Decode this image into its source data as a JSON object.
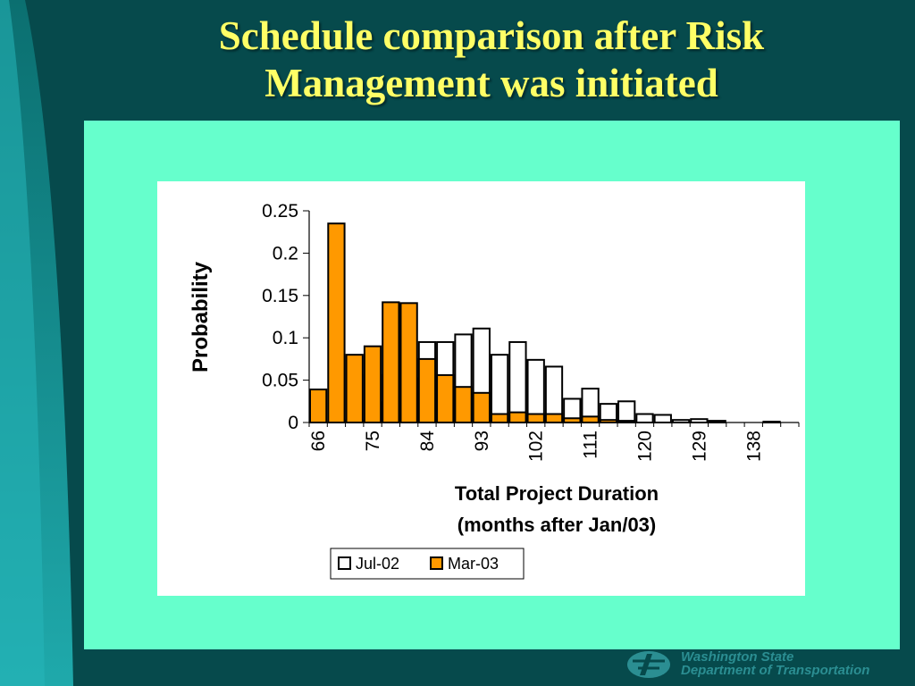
{
  "slide": {
    "title_line1": "Schedule comparison after Risk",
    "title_line2": "Management was initiated",
    "logo_line1": "Washington State",
    "logo_line2": "Department of Transportation"
  },
  "colors": {
    "background": "#064a4c",
    "title": "#ffff66",
    "panel": "#66ffcc",
    "series_jul02": "#ffffff",
    "series_mar03": "#ff9900",
    "logo": "#2b8e92"
  },
  "chart_data": {
    "type": "bar",
    "title": "",
    "xlabel_line1": "Total Project Duration",
    "xlabel_line2": "(months after Jan/03)",
    "ylabel": "Probability",
    "ylim": [
      0,
      0.25
    ],
    "yticks": [
      "0",
      "0.05",
      "0.1",
      "0.15",
      "0.2",
      "0.25"
    ],
    "xtick_labels": [
      "66",
      "75",
      "84",
      "93",
      "102",
      "111",
      "120",
      "129",
      "138"
    ],
    "bin_start": 66,
    "bin_width": 3,
    "grid": false,
    "legend_position": "bottom",
    "series": [
      {
        "name": "Jul-02",
        "color": "#ffffff",
        "values": [
          0.0,
          0.0,
          0.002,
          0.056,
          0.024,
          0.052,
          0.095,
          0.095,
          0.104,
          0.111,
          0.08,
          0.095,
          0.074,
          0.066,
          0.028,
          0.04,
          0.022,
          0.025,
          0.01,
          0.009,
          0.003,
          0.004,
          0.002,
          0.0,
          0.0,
          0.001,
          0.0
        ]
      },
      {
        "name": "Mar-03",
        "color": "#ff9900",
        "values": [
          0.039,
          0.235,
          0.08,
          0.09,
          0.142,
          0.141,
          0.075,
          0.056,
          0.042,
          0.035,
          0.01,
          0.012,
          0.01,
          0.01,
          0.005,
          0.007,
          0.003,
          0.002,
          0.0,
          0.0,
          0.0,
          0.0,
          0.0,
          0.0,
          0.0,
          0.0,
          0.0
        ]
      }
    ]
  }
}
